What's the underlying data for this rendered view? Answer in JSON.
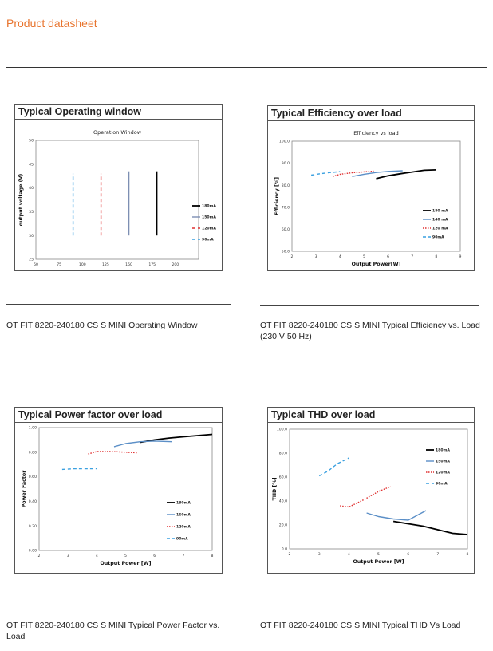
{
  "header": {
    "title": "Product datasheet"
  },
  "charts": [
    {
      "panel_title": "Typical Operating window",
      "caption": "OT FIT 8220-240180 CS S MINI Operating Window"
    },
    {
      "panel_title": "Typical Efficiency over load",
      "caption": "OT FIT 8220-240180 CS S MINI Typical Efficiency vs. Load (230 V  50 Hz)"
    },
    {
      "panel_title": "Typical Power factor over load",
      "caption": "OT FIT 8220-240180 CS S MINI Typical Power Factor vs. Load"
    },
    {
      "panel_title": "Typical THD over load",
      "caption": "OT FIT 8220-240180 CS S MINI Typical THD Vs Load"
    }
  ],
  "chart_data": [
    {
      "type": "line",
      "title": "Operation Window",
      "xlabel": "Output current (mA)",
      "ylabel": "output voltage (V)",
      "xlim": [
        50,
        225
      ],
      "ylim": [
        25,
        50
      ],
      "xticks": [
        "50",
        "75",
        "100",
        "125",
        "150",
        "175",
        "200"
      ],
      "yticks": [
        "25",
        "30",
        "35",
        "40",
        "45",
        "50"
      ],
      "grid": false,
      "legend": "right",
      "series": [
        {
          "name": "180mA",
          "color": "#000000",
          "dash": "solid",
          "x": [
            180,
            180
          ],
          "y": [
            30,
            43.5
          ]
        },
        {
          "name": "150mA",
          "color": "#7d8fb3",
          "dash": "solid",
          "x": [
            150,
            150
          ],
          "y": [
            30,
            43.5
          ]
        },
        {
          "name": "120mA",
          "color": "#e03030",
          "dash": "dashed",
          "x": [
            120,
            120
          ],
          "y": [
            30,
            43
          ]
        },
        {
          "name": "90mA",
          "color": "#3aa0e0",
          "dash": "dashed",
          "x": [
            90,
            90
          ],
          "y": [
            30,
            43
          ]
        }
      ]
    },
    {
      "type": "line",
      "title": "Efficiency vs load",
      "xlabel": "Output Power[W]",
      "ylabel": "Efficiency [%]",
      "xlim": [
        2,
        9
      ],
      "ylim": [
        50,
        100
      ],
      "xticks": [
        "2",
        "3",
        "4",
        "5",
        "6",
        "7",
        "8",
        "9"
      ],
      "yticks": [
        "50.0",
        "60.0",
        "70.0",
        "80.0",
        "90.0",
        "100.0"
      ],
      "grid": false,
      "legend": "bottom-right",
      "series": [
        {
          "name": "180 mA",
          "color": "#000000",
          "dash": "solid",
          "x": [
            5.5,
            6,
            6.5,
            7,
            7.5,
            8
          ],
          "y": [
            83,
            84.3,
            85.2,
            86,
            86.8,
            87
          ]
        },
        {
          "name": "140 mA",
          "color": "#5b8fc7",
          "dash": "solid",
          "x": [
            4.5,
            5,
            5.5,
            6,
            6.6
          ],
          "y": [
            84,
            85,
            85.8,
            86.3,
            86.6
          ]
        },
        {
          "name": "120 mA",
          "color": "#e03030",
          "dash": "dotted",
          "x": [
            3.7,
            4,
            4.5,
            5,
            5.4
          ],
          "y": [
            84,
            85,
            85.7,
            86.1,
            86.4
          ]
        },
        {
          "name": "90mA",
          "color": "#3aa0e0",
          "dash": "dashed",
          "x": [
            2.8,
            3.2,
            3.6,
            4
          ],
          "y": [
            84.6,
            85.3,
            85.8,
            86.2
          ]
        }
      ]
    },
    {
      "type": "line",
      "title": "",
      "xlabel": "Output Power [W]",
      "ylabel": "Power Factor",
      "xlim": [
        2,
        8
      ],
      "ylim": [
        0,
        1
      ],
      "xticks": [
        "2",
        "3",
        "4",
        "5",
        "6",
        "7",
        "8"
      ],
      "yticks": [
        "0.00",
        "0.20",
        "0.40",
        "0.60",
        "0.80",
        "1.00"
      ],
      "grid": false,
      "legend": "bottom-right",
      "series": [
        {
          "name": "180mA",
          "color": "#000000",
          "dash": "solid",
          "x": [
            5.5,
            6,
            6.5,
            7,
            7.5,
            8
          ],
          "y": [
            0.88,
            0.9,
            0.915,
            0.925,
            0.935,
            0.945
          ]
        },
        {
          "name": "160mA",
          "color": "#5b8fc7",
          "dash": "solid",
          "x": [
            4.6,
            5,
            5.5,
            6,
            6.6
          ],
          "y": [
            0.845,
            0.87,
            0.885,
            0.89,
            0.885
          ]
        },
        {
          "name": "120mA",
          "color": "#e03030",
          "dash": "dotted",
          "x": [
            3.7,
            4,
            4.5,
            5,
            5.4
          ],
          "y": [
            0.785,
            0.805,
            0.805,
            0.8,
            0.795
          ]
        },
        {
          "name": "90mA",
          "color": "#3aa0e0",
          "dash": "dashed",
          "x": [
            2.8,
            3.2,
            3.6,
            4
          ],
          "y": [
            0.66,
            0.665,
            0.665,
            0.665
          ]
        }
      ]
    },
    {
      "type": "line",
      "title": "",
      "xlabel": "Output Power [W]",
      "ylabel": "THD [%]",
      "xlim": [
        2,
        8
      ],
      "ylim": [
        0,
        100
      ],
      "xticks": [
        "2",
        "3",
        "4",
        "5",
        "6",
        "7",
        "8"
      ],
      "yticks": [
        "0.0",
        "20.0",
        "40.0",
        "60.0",
        "80.0",
        "100.0"
      ],
      "grid": false,
      "legend": "top-right",
      "series": [
        {
          "name": "180mA",
          "color": "#000000",
          "dash": "solid",
          "x": [
            5.5,
            6,
            6.5,
            7,
            7.5,
            8
          ],
          "y": [
            23,
            21,
            19,
            16,
            13,
            12
          ]
        },
        {
          "name": "150mA",
          "color": "#5b8fc7",
          "dash": "solid",
          "x": [
            4.6,
            5,
            5.5,
            6,
            6.6
          ],
          "y": [
            30,
            27,
            25,
            24,
            32
          ]
        },
        {
          "name": "120mA",
          "color": "#e03030",
          "dash": "dotted",
          "x": [
            3.7,
            4,
            4.5,
            5,
            5.4
          ],
          "y": [
            36,
            35,
            41,
            48,
            52
          ]
        },
        {
          "name": "90mA",
          "color": "#3aa0e0",
          "dash": "dashed",
          "x": [
            3,
            3.3,
            3.6,
            4
          ],
          "y": [
            61,
            65,
            71,
            76
          ]
        }
      ]
    }
  ]
}
